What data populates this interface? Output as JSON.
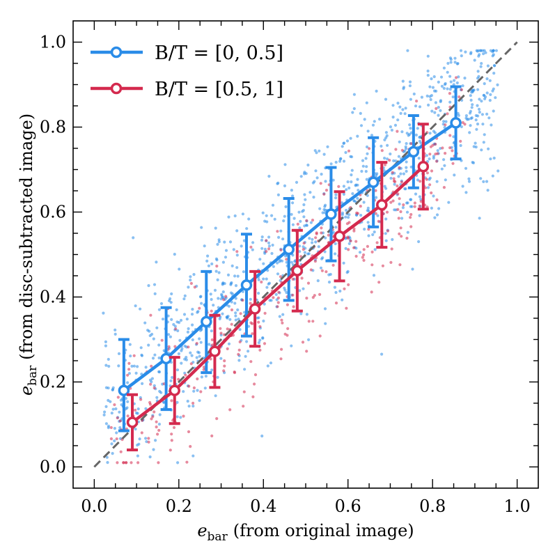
{
  "chart_data": {
    "type": "scatter",
    "title": "",
    "xlabel": {
      "symbol": "e",
      "subscript": "bar",
      "text": "(from original image)"
    },
    "ylabel": {
      "symbol": "e",
      "subscript": "bar",
      "text": "(from disc-subtracted image)"
    },
    "xlim": [
      -0.05,
      1.05
    ],
    "ylim": [
      -0.05,
      1.05
    ],
    "xticks": [
      "0.0",
      "0.2",
      "0.4",
      "0.6",
      "0.8",
      "1.0"
    ],
    "yticks": [
      "0.0",
      "0.2",
      "0.4",
      "0.6",
      "0.8",
      "1.0"
    ],
    "grid": false,
    "legend_position": "top-left",
    "reference_line": {
      "style": "dashed",
      "x": [
        0,
        1
      ],
      "y": [
        0,
        1
      ],
      "color": "#666666"
    },
    "series": [
      {
        "name": "B/T = [0, 0.5]",
        "color": "#2a8ce8",
        "x": [
          0.07,
          0.17,
          0.265,
          0.36,
          0.46,
          0.56,
          0.66,
          0.755,
          0.855
        ],
        "y": [
          0.18,
          0.255,
          0.342,
          0.428,
          0.512,
          0.595,
          0.67,
          0.742,
          0.81
        ],
        "err_low": [
          0.095,
          0.12,
          0.12,
          0.12,
          0.12,
          0.11,
          0.105,
          0.085,
          0.085
        ],
        "err_high": [
          0.12,
          0.12,
          0.118,
          0.12,
          0.12,
          0.11,
          0.105,
          0.085,
          0.085
        ],
        "scatter_count": 1100
      },
      {
        "name": "B/T = [0.5, 1]",
        "color": "#d42a4e",
        "x": [
          0.09,
          0.19,
          0.285,
          0.38,
          0.48,
          0.58,
          0.68,
          0.778
        ],
        "y": [
          0.105,
          0.18,
          0.272,
          0.372,
          0.462,
          0.543,
          0.617,
          0.707
        ],
        "err_low": [
          0.065,
          0.078,
          0.085,
          0.088,
          0.095,
          0.105,
          0.1,
          0.1
        ],
        "err_high": [
          0.065,
          0.078,
          0.085,
          0.088,
          0.095,
          0.105,
          0.1,
          0.1
        ],
        "scatter_count": 380
      }
    ]
  }
}
